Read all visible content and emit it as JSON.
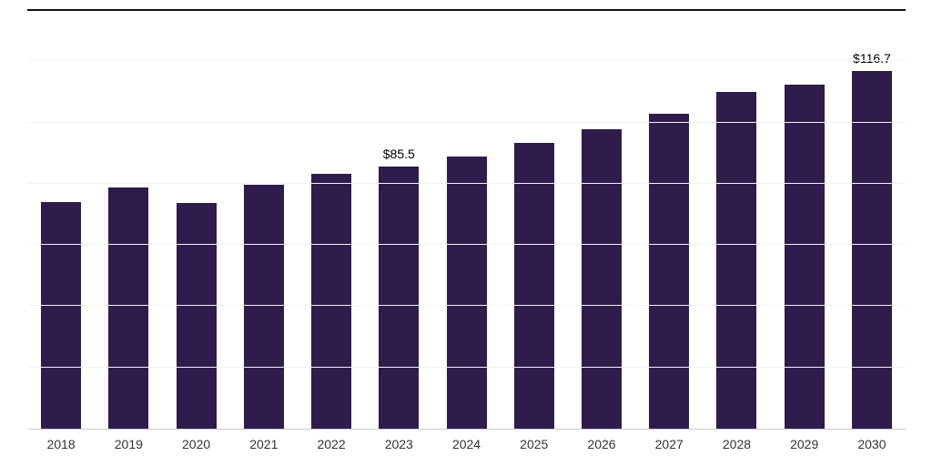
{
  "chart_data": {
    "type": "bar",
    "title": "",
    "xlabel": "",
    "ylabel": "",
    "categories": [
      "2018",
      "2019",
      "2020",
      "2021",
      "2022",
      "2023",
      "2024",
      "2025",
      "2026",
      "2027",
      "2028",
      "2029",
      "2030"
    ],
    "values": [
      74.0,
      78.8,
      73.7,
      79.6,
      83.3,
      85.5,
      88.8,
      93.2,
      97.9,
      102.9,
      110.0,
      112.4,
      116.7
    ],
    "point_labels": [
      "",
      "",
      "",
      "",
      "",
      "$85.5",
      "",
      "",
      "",
      "",
      "",
      "",
      "$116.7"
    ],
    "ylim": [
      0,
      140
    ],
    "grid_step": 20,
    "grid": true,
    "legend": false,
    "y_tick_labels_visible": false,
    "colors": {
      "bar": "#2f1b4c",
      "axis_line": "#cccccc",
      "grid_line": "#f2f2f2",
      "tick_label": "#333333",
      "value_label": "#000000",
      "top_rule": "#10101e"
    }
  }
}
